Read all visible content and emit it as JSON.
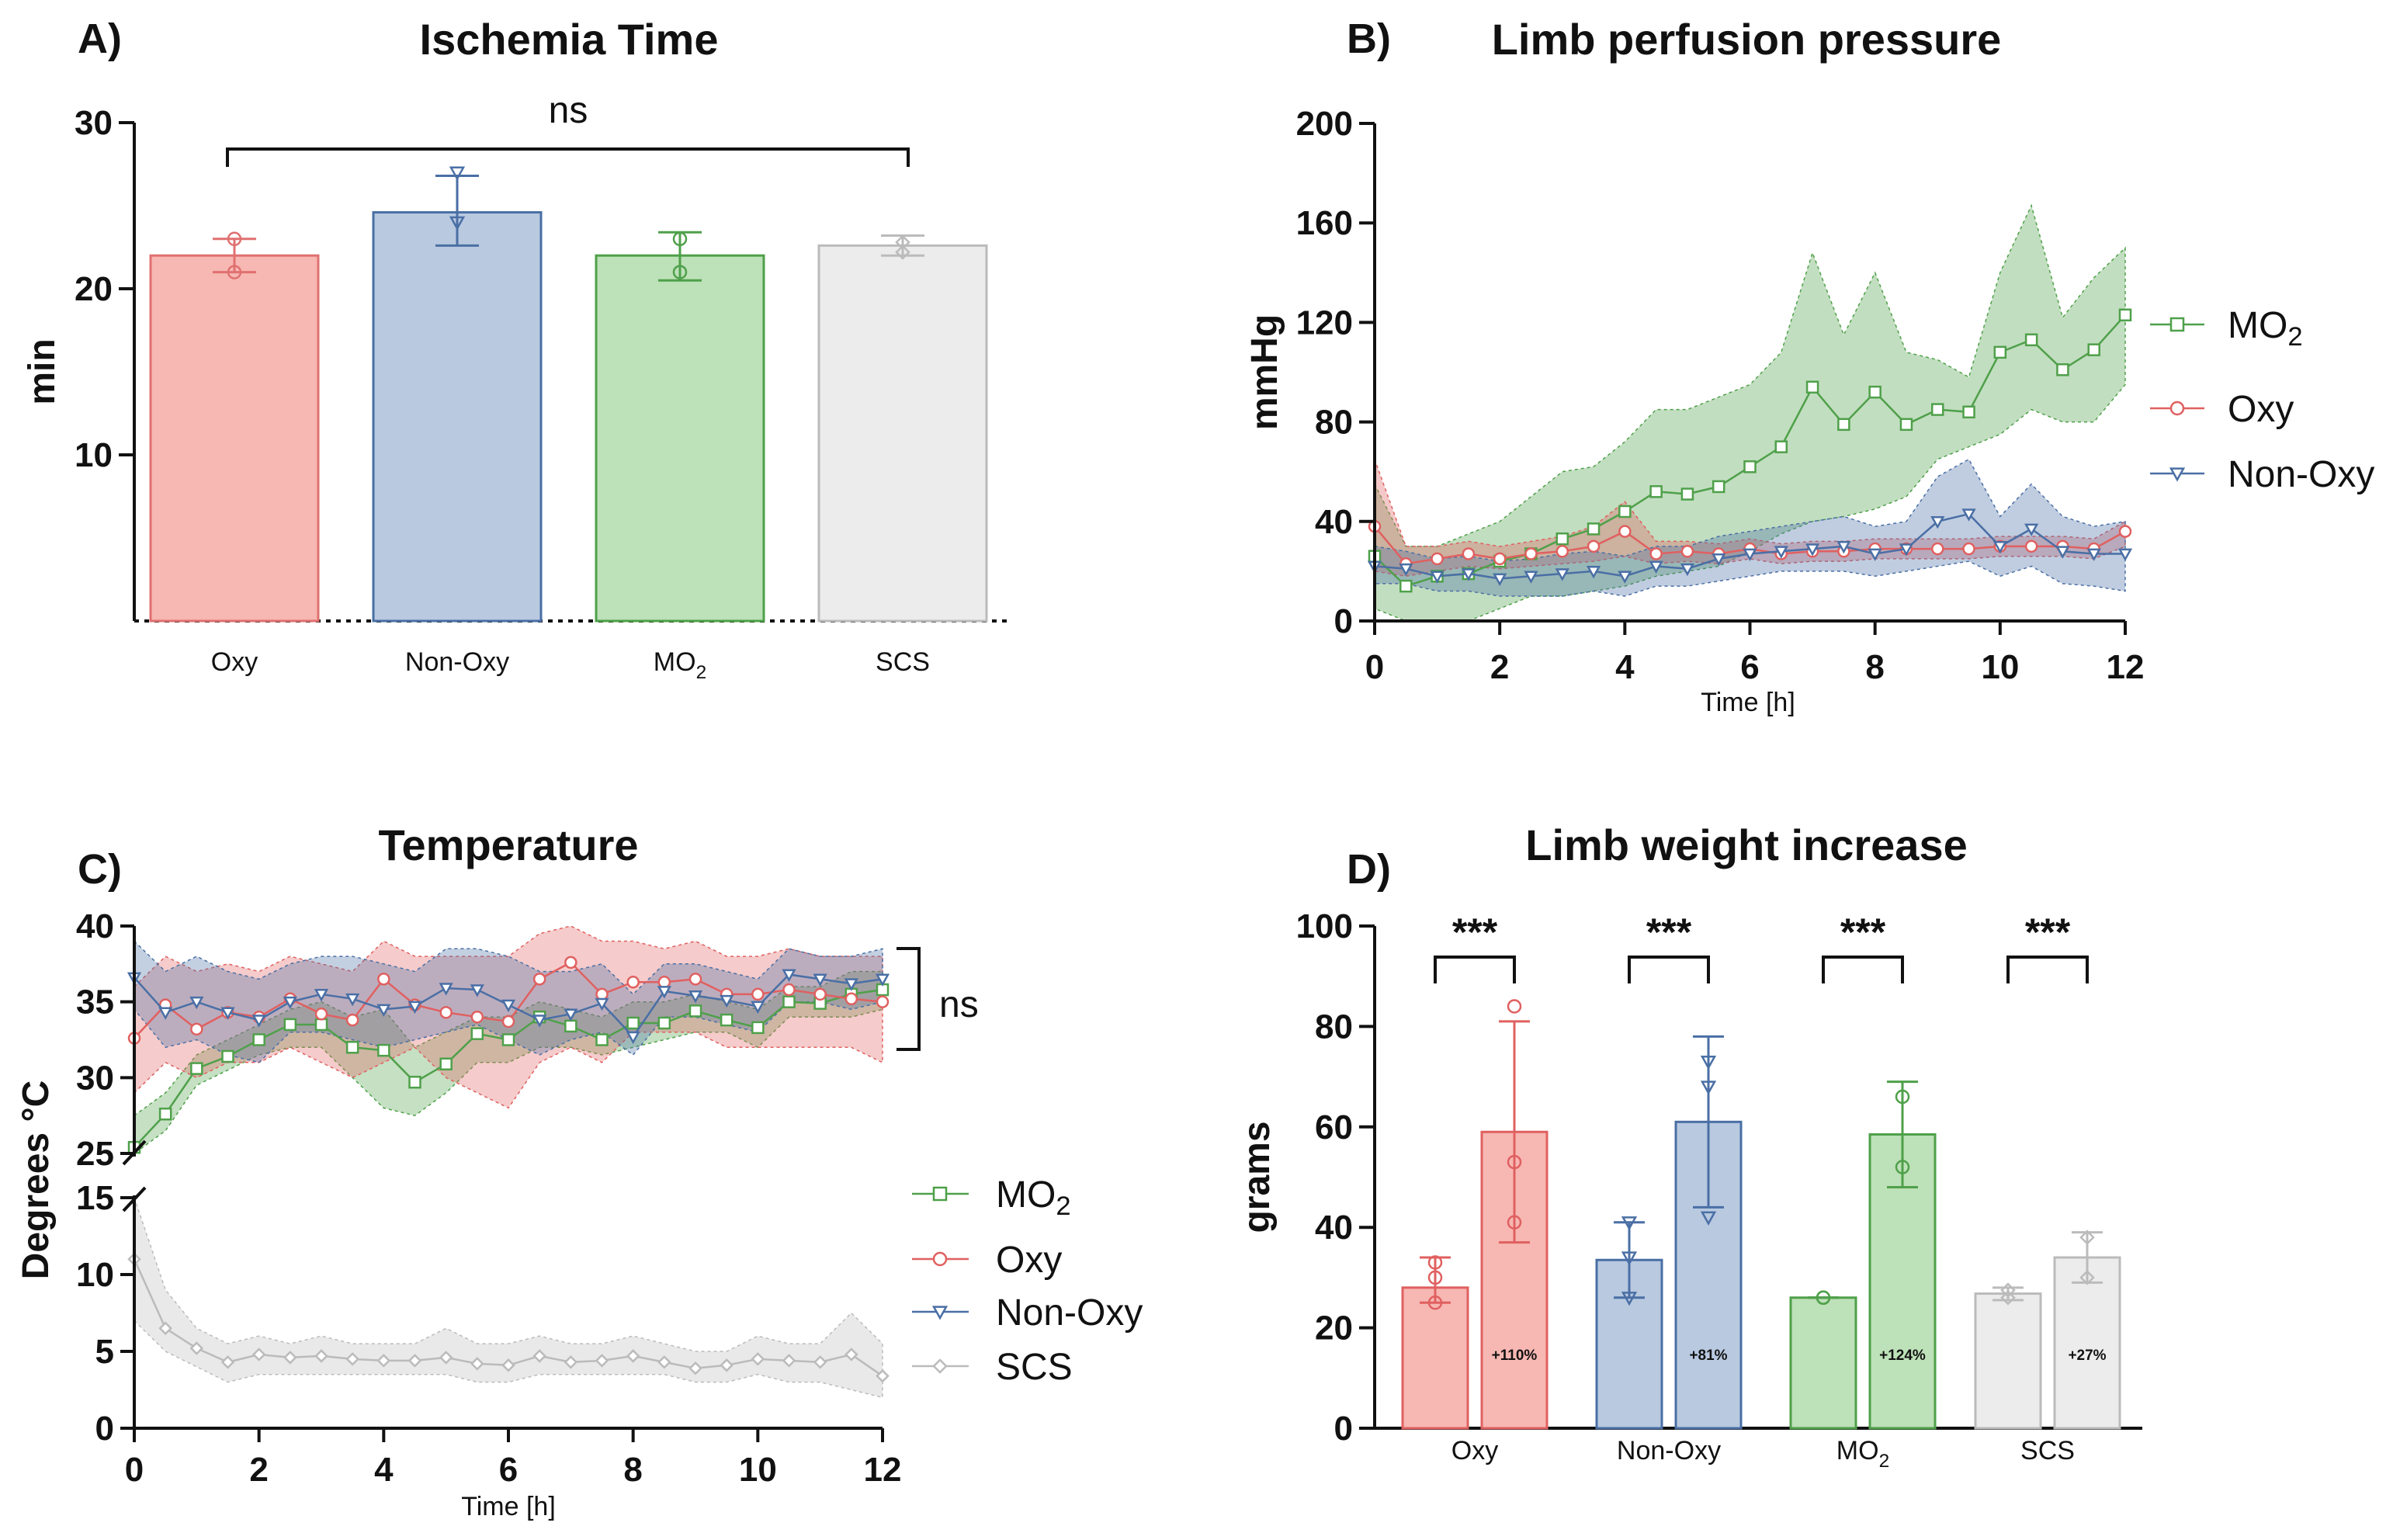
{
  "chart_data": [
    {
      "panel": "A)",
      "type": "bar",
      "title": "Ischemia Time",
      "ylabel": "min",
      "ylim": [
        0,
        30
      ],
      "yticks": [
        "30",
        "20",
        "10"
      ],
      "categories": [
        {
          "label": "Oxy",
          "sub": ""
        },
        {
          "label": "Non-Oxy",
          "sub": ""
        },
        {
          "label": "MO",
          "sub": "2"
        },
        {
          "label": "SCS",
          "sub": ""
        }
      ],
      "values": [
        22.0,
        24.6,
        22.0,
        22.6
      ],
      "errors": [
        [
          21.0,
          23.0
        ],
        [
          22.6,
          26.8
        ],
        [
          20.5,
          23.4
        ],
        [
          22.0,
          23.2
        ]
      ],
      "points": [
        [
          21.0,
          23.0
        ],
        [
          24.0,
          27.0
        ],
        [
          21.0,
          23.0
        ],
        [
          22.2,
          22.8
        ]
      ],
      "colors": [
        "#f7b7b3",
        "#b8c9e0",
        "#bde1b8",
        "#ececec"
      ],
      "edges": [
        "#e07070",
        "#4a6fa5",
        "#4fa04a",
        "#bbbbbb"
      ],
      "annotation": "ns"
    },
    {
      "panel": "B)",
      "type": "line",
      "title": "Limb perfusion pressure",
      "xlabel": "Time [h]",
      "ylabel": "mmHg",
      "xlim": [
        0,
        12
      ],
      "ylim": [
        0,
        200
      ],
      "xticks": [
        "0",
        "2",
        "4",
        "6",
        "8",
        "10",
        "12"
      ],
      "yticks": [
        "0",
        "40",
        "80",
        "120",
        "160",
        "200"
      ],
      "x": [
        0,
        0.5,
        1,
        1.5,
        2,
        2.5,
        3,
        3.5,
        4,
        4.5,
        5,
        5.5,
        6,
        6.5,
        7,
        7.5,
        8,
        8.5,
        9,
        9.5,
        10,
        10.5,
        11,
        11.5,
        12
      ],
      "series": [
        {
          "name": "MO",
          "sub": "2",
          "color": "#4fa04a",
          "marker": "square",
          "values": [
            26,
            14,
            18,
            19,
            24,
            27,
            33,
            37,
            44,
            52,
            51,
            54,
            62,
            70,
            94,
            79,
            92,
            79,
            85,
            84,
            108,
            113,
            101,
            109,
            123
          ],
          "lower": [
            5,
            0,
            0,
            0,
            5,
            10,
            10,
            12,
            14,
            18,
            20,
            22,
            28,
            35,
            40,
            42,
            45,
            50,
            65,
            70,
            75,
            85,
            80,
            80,
            95
          ],
          "upper": [
            55,
            30,
            30,
            35,
            40,
            50,
            60,
            62,
            72,
            85,
            85,
            90,
            95,
            108,
            148,
            115,
            140,
            108,
            105,
            98,
            140,
            167,
            122,
            138,
            150
          ]
        },
        {
          "name": "Oxy",
          "sub": "",
          "color": "#e06060",
          "marker": "circle",
          "values": [
            38,
            23,
            25,
            27,
            25,
            27,
            28,
            30,
            36,
            27,
            28,
            27,
            29,
            27,
            28,
            28,
            29,
            29,
            29,
            29,
            30,
            30,
            30,
            29,
            36
          ],
          "lower": [
            20,
            18,
            20,
            22,
            21,
            22,
            23,
            24,
            26,
            23,
            24,
            23,
            25,
            23,
            24,
            24,
            25,
            25,
            25,
            25,
            26,
            26,
            26,
            25,
            30
          ],
          "upper": [
            65,
            30,
            30,
            32,
            30,
            32,
            34,
            38,
            48,
            32,
            32,
            31,
            33,
            31,
            32,
            32,
            33,
            33,
            33,
            33,
            34,
            34,
            34,
            33,
            40
          ]
        },
        {
          "name": "Non-Oxy",
          "sub": "",
          "color": "#4a6fa5",
          "marker": "triangle",
          "values": [
            22,
            21,
            18,
            19,
            17,
            18,
            19,
            20,
            18,
            22,
            21,
            25,
            27,
            28,
            29,
            30,
            27,
            29,
            40,
            43,
            30,
            37,
            28,
            27,
            27
          ],
          "lower": [
            15,
            15,
            12,
            12,
            10,
            10,
            10,
            12,
            10,
            14,
            14,
            16,
            18,
            20,
            20,
            20,
            18,
            20,
            22,
            24,
            18,
            22,
            15,
            14,
            12
          ],
          "upper": [
            30,
            28,
            25,
            26,
            24,
            25,
            27,
            28,
            26,
            30,
            30,
            34,
            36,
            38,
            40,
            42,
            38,
            40,
            58,
            65,
            42,
            55,
            42,
            38,
            40
          ]
        }
      ]
    },
    {
      "panel": "C)",
      "type": "line",
      "title": "Temperature",
      "xlabel": "Time [h]",
      "ylabel": "Degrees °C",
      "xlim": [
        0,
        12
      ],
      "upper_ylim": [
        25,
        40
      ],
      "lower_ylim": [
        0,
        15
      ],
      "xticks": [
        "0",
        "2",
        "4",
        "6",
        "8",
        "10",
        "12"
      ],
      "upper_yticks": [
        "25",
        "30",
        "35",
        "40"
      ],
      "lower_yticks": [
        "0",
        "5",
        "10",
        "15"
      ],
      "annotation": "ns",
      "x": [
        0,
        0.5,
        1,
        1.5,
        2,
        2.5,
        3,
        3.5,
        4,
        4.5,
        5,
        5.5,
        6,
        6.5,
        7,
        7.5,
        8,
        8.5,
        9,
        9.5,
        10,
        10.5,
        11,
        11.5,
        12
      ],
      "series": [
        {
          "name": "MO",
          "sub": "2",
          "color": "#4fa04a",
          "marker": "square",
          "segment": "upper",
          "values": [
            25.4,
            27.6,
            30.6,
            31.4,
            32.5,
            33.5,
            33.5,
            32.0,
            31.8,
            29.7,
            30.9,
            32.9,
            32.5,
            34.0,
            33.4,
            32.5,
            33.6,
            33.6,
            34.4,
            33.8,
            33.3,
            35.0,
            34.9,
            35.5,
            35.8
          ],
          "lower": [
            25,
            26.5,
            29.5,
            30.5,
            31.5,
            32,
            32,
            30,
            28,
            27.5,
            29,
            31,
            31,
            32,
            32,
            31.5,
            32,
            32.5,
            33,
            33,
            32,
            34,
            34,
            34,
            34.5
          ],
          "upper": [
            27.5,
            29,
            31.5,
            32.5,
            33.5,
            34.5,
            35,
            34,
            34.5,
            32,
            33,
            34,
            34,
            35,
            34.5,
            34,
            35,
            35,
            35.5,
            35,
            34.5,
            36,
            36,
            37,
            37
          ]
        },
        {
          "name": "Oxy",
          "sub": "",
          "color": "#e06060",
          "marker": "circle",
          "segment": "upper",
          "values": [
            32.6,
            34.8,
            33.2,
            34.3,
            34.0,
            35.2,
            34.2,
            33.8,
            36.5,
            34.8,
            34.3,
            34.0,
            33.7,
            36.5,
            37.6,
            35.5,
            36.3,
            36.3,
            36.5,
            35.5,
            35.5,
            35.8,
            35.5,
            35.2,
            35.0
          ],
          "lower": [
            29,
            31,
            30,
            31,
            31,
            32,
            31,
            30,
            31,
            32,
            30,
            29,
            28,
            31,
            32,
            31,
            33,
            33,
            33,
            32,
            32,
            32,
            32,
            32,
            31
          ],
          "upper": [
            36,
            38,
            37,
            37.5,
            37,
            38,
            37.5,
            37,
            39,
            38,
            38,
            38,
            38,
            39.5,
            40,
            39,
            39,
            38.5,
            39,
            38,
            38,
            38.5,
            38,
            38,
            38
          ]
        },
        {
          "name": "Non-Oxy",
          "sub": "",
          "color": "#4a6fa5",
          "marker": "triangle",
          "segment": "upper",
          "values": [
            36.6,
            34.3,
            35.0,
            34.3,
            33.8,
            35.0,
            35.5,
            35.2,
            34.5,
            34.7,
            35.9,
            35.8,
            34.8,
            33.8,
            34.2,
            34.9,
            32.7,
            35.7,
            35.4,
            35.1,
            34.7,
            36.8,
            36.5,
            36.2,
            36.5
          ],
          "lower": [
            34.5,
            32,
            32.5,
            31.5,
            31,
            33,
            33,
            32.5,
            32,
            32.5,
            33,
            33.5,
            32.5,
            31.5,
            32.5,
            33,
            31.5,
            34,
            34,
            33.5,
            33,
            35,
            35,
            34.5,
            35
          ],
          "upper": [
            39,
            37,
            38,
            37,
            36.5,
            37.5,
            38,
            38,
            37.5,
            37,
            38.5,
            38.5,
            38,
            37,
            37,
            37.5,
            35.5,
            37.5,
            37.5,
            37,
            36.5,
            38.5,
            38,
            38,
            38.5
          ]
        },
        {
          "name": "SCS",
          "sub": "",
          "color": "#bbbbbb",
          "marker": "diamond",
          "segment": "lower",
          "values": [
            11.0,
            6.5,
            5.2,
            4.3,
            4.8,
            4.6,
            4.7,
            4.5,
            4.4,
            4.4,
            4.6,
            4.2,
            4.1,
            4.7,
            4.3,
            4.4,
            4.7,
            4.3,
            3.9,
            4.1,
            4.5,
            4.4,
            4.3,
            4.8,
            3.4
          ],
          "lower": [
            7,
            5,
            4,
            3,
            3.5,
            3.5,
            3.5,
            3.5,
            3.5,
            3.5,
            3.5,
            3,
            3,
            3.5,
            3.5,
            3.5,
            3.5,
            3.5,
            3,
            3,
            3.5,
            3,
            3,
            2.5,
            2
          ],
          "upper": [
            15,
            9,
            6.5,
            5.5,
            6,
            5.5,
            6,
            5.5,
            5.5,
            5.5,
            6.5,
            5.5,
            5.5,
            6,
            5.5,
            5.5,
            6,
            5.5,
            5,
            5,
            6,
            5.5,
            5.5,
            7.5,
            5.5
          ]
        }
      ]
    },
    {
      "panel": "D)",
      "type": "bar",
      "title": "Limb weight increase",
      "ylabel": "grams",
      "ylim": [
        0,
        100
      ],
      "yticks": [
        "0",
        "20",
        "40",
        "60",
        "80",
        "100"
      ],
      "groups": [
        {
          "label": "Oxy",
          "sub": "",
          "significance": "***",
          "change": "+110%",
          "values": [
            28,
            59
          ],
          "errors": [
            [
              25,
              34
            ],
            [
              37,
              81
            ]
          ],
          "points": [
            [
              25,
              30,
              33
            ],
            [
              41,
              53,
              84
            ]
          ],
          "color": "#f7b7b3",
          "edge": "#e06060"
        },
        {
          "label": "Non-Oxy",
          "sub": "",
          "significance": "***",
          "change": "+81%",
          "values": [
            33.5,
            61
          ],
          "errors": [
            [
              26,
              41
            ],
            [
              44,
              78
            ]
          ],
          "points": [
            [
              26,
              34,
              41
            ],
            [
              42,
              68,
              73
            ]
          ],
          "color": "#b8c9e0",
          "edge": "#4a6fa5"
        },
        {
          "label": "MO",
          "sub": "2",
          "significance": "***",
          "change": "+124%",
          "values": [
            26,
            58.5
          ],
          "errors": [
            [
              26,
              26
            ],
            [
              48,
              69
            ]
          ],
          "points": [
            [
              26,
              26
            ],
            [
              52,
              66
            ]
          ],
          "color": "#bde1b8",
          "edge": "#4fa04a"
        },
        {
          "label": "SCS",
          "sub": "",
          "significance": "***",
          "change": "+27%",
          "values": [
            26.8,
            34
          ],
          "errors": [
            [
              25.5,
              28
            ],
            [
              29,
              39
            ]
          ],
          "points": [
            [
              26,
              27.5
            ],
            [
              30,
              38
            ]
          ],
          "color": "#ececec",
          "edge": "#bbbbbb"
        }
      ]
    }
  ]
}
